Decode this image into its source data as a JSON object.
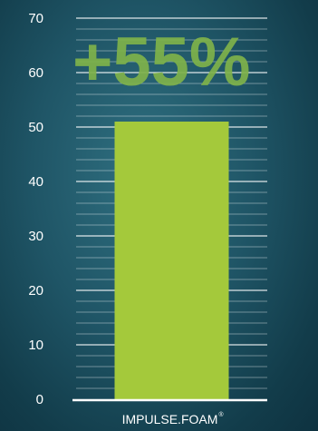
{
  "chart_data": {
    "type": "bar",
    "categories": [
      "IMPULSE.FOAM"
    ],
    "category_mark": "®",
    "values": [
      51
    ],
    "ylim": [
      0,
      70
    ],
    "y_ticks": [
      0,
      10,
      20,
      30,
      40,
      50,
      60,
      70
    ],
    "minor_step": 2,
    "annotation": "+55%",
    "grid": true,
    "colors": {
      "bar": "#a4c93b",
      "annotation": "#7fb24a",
      "grid": "#ffffff",
      "text": "#ffffff"
    }
  }
}
